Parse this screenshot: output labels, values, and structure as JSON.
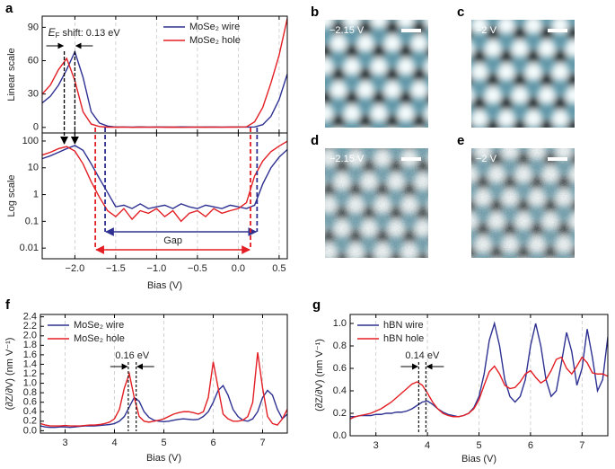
{
  "chart_data": [
    {
      "type": "line",
      "panel": "a",
      "x": [
        -2.4,
        -2.3,
        -2.2,
        -2.1,
        -2.0,
        -1.9,
        -1.8,
        -1.7,
        -1.6,
        -1.5,
        -1.4,
        -1.3,
        -1.2,
        -1.1,
        -1.0,
        -0.9,
        -0.8,
        -0.7,
        -0.6,
        -0.5,
        -0.4,
        -0.3,
        -0.2,
        -0.1,
        0.0,
        0.1,
        0.2,
        0.3,
        0.4,
        0.5,
        0.6
      ],
      "xlim": [
        -2.4,
        0.6
      ],
      "xticks": [
        {
          "value": -2.0,
          "label": "−2.0"
        },
        {
          "value": -1.5,
          "label": "−1.5"
        },
        {
          "value": -1.0,
          "label": "−1.0"
        },
        {
          "value": -0.5,
          "label": "−0.5"
        },
        {
          "value": 0,
          "label": "0.0"
        },
        0.5
      ],
      "xlabel": "Bias (V)",
      "series": [
        {
          "name": "MoSe₂ wire",
          "color": "#2e3192",
          "values": [
            22,
            28,
            38,
            52,
            68,
            45,
            14,
            4,
            1.2,
            0.35,
            0.4,
            0.3,
            0.45,
            0.3,
            0.35,
            0.4,
            0.3,
            0.45,
            0.35,
            0.3,
            0.4,
            0.35,
            0.3,
            0.4,
            0.35,
            0.3,
            0.4,
            2.5,
            10,
            25,
            48
          ]
        },
        {
          "name": "MoSe₂ hole",
          "color": "#e31e24",
          "values": [
            30,
            38,
            52,
            62,
            42,
            14,
            3,
            0.8,
            0.25,
            0.15,
            0.3,
            0.12,
            0.25,
            0.2,
            0.3,
            0.15,
            0.25,
            0.1,
            0.2,
            0.25,
            0.15,
            0.3,
            0.2,
            0.25,
            0.3,
            0.5,
            5,
            18,
            40,
            65,
            98
          ]
        }
      ],
      "subplots": [
        {
          "ylabel": "Linear scale",
          "ylim": [
            -5,
            100
          ],
          "yticks": [
            0,
            30,
            60,
            90
          ],
          "log": false
        },
        {
          "ylabel": "Log scale",
          "ylim": [
            0.004,
            200
          ],
          "yticks": [
            0.01,
            0.1,
            1,
            10,
            100
          ],
          "log": true
        }
      ],
      "shift_parts": [
        "E",
        "F",
        " shift: 0.13 eV"
      ],
      "peak_x": [
        -2.0,
        -2.13
      ],
      "band_edges": [
        [
          -1.63,
          0.23
        ],
        [
          -1.75,
          0.15
        ]
      ],
      "gap_label": "Gap",
      "legend": "upper right",
      "grid": true
    },
    {
      "type": "line",
      "panel": "f",
      "x": [
        2.5,
        2.6,
        2.7,
        2.8,
        2.9,
        3.0,
        3.1,
        3.2,
        3.3,
        3.4,
        3.5,
        3.6,
        3.7,
        3.8,
        3.9,
        4.0,
        4.1,
        4.2,
        4.3,
        4.4,
        4.5,
        4.6,
        4.7,
        4.8,
        4.9,
        5.0,
        5.1,
        5.2,
        5.3,
        5.4,
        5.5,
        5.6,
        5.7,
        5.8,
        5.9,
        6.0,
        6.1,
        6.2,
        6.3,
        6.4,
        6.5,
        6.6,
        6.7,
        6.8,
        6.9,
        7.0,
        7.1,
        7.2,
        7.3,
        7.4,
        7.5
      ],
      "xlim": [
        2.5,
        7.5
      ],
      "xticks": [
        3,
        4,
        5,
        6,
        7
      ],
      "xlabel": "Bias (V)",
      "ylabel": "(∂Z/∂V) (nm V⁻¹)",
      "ylim": [
        -0.05,
        2.45
      ],
      "yticks": [
        {
          "value": 0,
          "label": "0.0"
        },
        0.2,
        0.4,
        0.6,
        0.8,
        {
          "value": 1,
          "label": "1.0"
        },
        1.2,
        1.4,
        1.6,
        1.8,
        {
          "value": 2,
          "label": "2.0"
        },
        2.2,
        2.4
      ],
      "series": [
        {
          "name": "MoSe₂ wire",
          "color": "#2e3192",
          "values": [
            0.1,
            0.08,
            0.07,
            0.07,
            0.08,
            0.08,
            0.07,
            0.08,
            0.09,
            0.1,
            0.1,
            0.1,
            0.11,
            0.12,
            0.13,
            0.15,
            0.2,
            0.3,
            0.5,
            0.7,
            0.62,
            0.4,
            0.28,
            0.22,
            0.2,
            0.19,
            0.2,
            0.22,
            0.24,
            0.25,
            0.24,
            0.23,
            0.24,
            0.3,
            0.4,
            0.6,
            0.85,
            0.95,
            0.75,
            0.45,
            0.3,
            0.22,
            0.2,
            0.25,
            0.4,
            0.7,
            0.85,
            0.75,
            0.45,
            0.25,
            0.35
          ]
        },
        {
          "name": "MoSe₂ hole",
          "color": "#e31e24",
          "values": [
            0.15,
            0.12,
            0.1,
            0.1,
            0.1,
            0.11,
            0.1,
            0.1,
            0.1,
            0.11,
            0.12,
            0.12,
            0.13,
            0.15,
            0.18,
            0.25,
            0.45,
            0.9,
            1.2,
            0.7,
            0.3,
            0.2,
            0.18,
            0.2,
            0.22,
            0.25,
            0.3,
            0.35,
            0.38,
            0.4,
            0.4,
            0.38,
            0.35,
            0.4,
            0.7,
            1.45,
            0.9,
            0.35,
            0.25,
            0.2,
            0.2,
            0.22,
            0.3,
            0.6,
            1.65,
            0.9,
            0.3,
            0.15,
            0.12,
            0.25,
            0.45
          ]
        }
      ],
      "shift_label": "0.16 eV",
      "peak_x": [
        4.44,
        4.28
      ],
      "legend": "upper left",
      "grid": true
    },
    {
      "type": "line",
      "panel": "g",
      "x": [
        2.5,
        2.6,
        2.7,
        2.8,
        2.9,
        3.0,
        3.1,
        3.2,
        3.3,
        3.4,
        3.5,
        3.6,
        3.7,
        3.8,
        3.9,
        4.0,
        4.1,
        4.2,
        4.3,
        4.4,
        4.5,
        4.6,
        4.7,
        4.8,
        4.9,
        5.0,
        5.1,
        5.2,
        5.3,
        5.4,
        5.5,
        5.6,
        5.7,
        5.8,
        5.9,
        6.0,
        6.1,
        6.2,
        6.3,
        6.4,
        6.5,
        6.6,
        6.7,
        6.8,
        6.9,
        7.0,
        7.1,
        7.2,
        7.3,
        7.4,
        7.5
      ],
      "xlim": [
        2.5,
        7.5
      ],
      "xticks": [
        3,
        4,
        5,
        6,
        7
      ],
      "xlabel": "Bias (V)",
      "ylabel": "(∂Z/∂V) (nm V⁻¹)",
      "ylim": [
        0,
        1.08
      ],
      "yticks": [
        {
          "value": 0,
          "label": "0.0"
        },
        0.2,
        0.4,
        0.6,
        0.8,
        {
          "value": 1,
          "label": "1.0"
        }
      ],
      "series": [
        {
          "name": "hBN wire",
          "color": "#2e3192",
          "values": [
            0.17,
            0.17,
            0.18,
            0.18,
            0.18,
            0.19,
            0.19,
            0.2,
            0.2,
            0.21,
            0.21,
            0.22,
            0.24,
            0.27,
            0.3,
            0.31,
            0.28,
            0.24,
            0.21,
            0.19,
            0.18,
            0.17,
            0.18,
            0.2,
            0.25,
            0.35,
            0.55,
            0.85,
            1.0,
            0.8,
            0.5,
            0.35,
            0.3,
            0.35,
            0.5,
            0.8,
            1.0,
            0.8,
            0.5,
            0.35,
            0.4,
            0.65,
            0.92,
            0.75,
            0.45,
            0.6,
            0.95,
            0.7,
            0.4,
            0.5,
            0.88
          ]
        },
        {
          "name": "hBN hole",
          "color": "#e31e24",
          "values": [
            0.15,
            0.17,
            0.18,
            0.19,
            0.2,
            0.22,
            0.24,
            0.27,
            0.3,
            0.34,
            0.38,
            0.42,
            0.46,
            0.48,
            0.45,
            0.38,
            0.3,
            0.24,
            0.2,
            0.18,
            0.17,
            0.17,
            0.18,
            0.2,
            0.24,
            0.32,
            0.45,
            0.57,
            0.62,
            0.55,
            0.45,
            0.42,
            0.43,
            0.48,
            0.55,
            0.58,
            0.52,
            0.47,
            0.5,
            0.58,
            0.68,
            0.7,
            0.6,
            0.55,
            0.62,
            0.7,
            0.65,
            0.56,
            0.55,
            0.55,
            0.53
          ]
        }
      ],
      "shift_label": "0.14 eV",
      "peak_x": [
        3.97,
        3.83
      ],
      "legend": "upper left",
      "grid": true
    }
  ],
  "images": [
    {
      "panel": "b",
      "label": "−2.15 V",
      "noisy": false
    },
    {
      "panel": "c",
      "label": "−2 V",
      "noisy": false
    },
    {
      "panel": "d",
      "label": "−2.15 V",
      "noisy": true
    },
    {
      "panel": "e",
      "label": "−2 V",
      "noisy": true
    }
  ]
}
